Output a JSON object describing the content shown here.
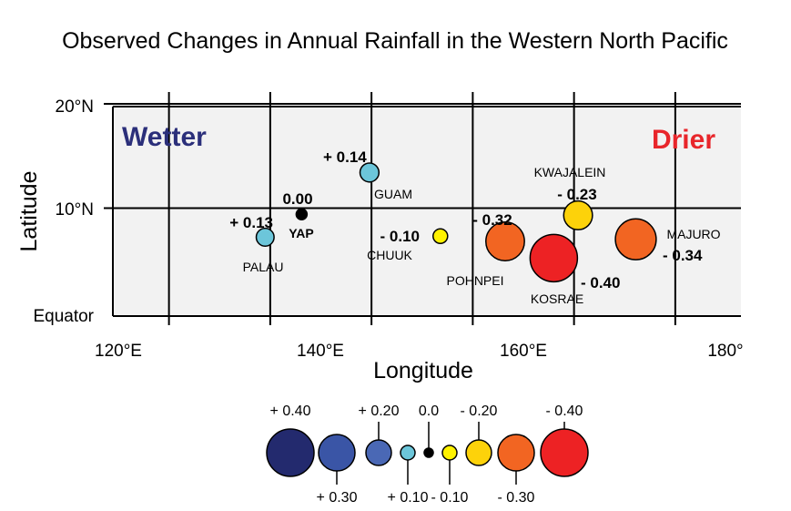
{
  "title": "Observed Changes in Annual Rainfall in the Western North Pacific",
  "xlabel": "Longitude",
  "ylabel": "Latitude",
  "x_ticks": [
    {
      "lon": 120,
      "label": "120°E"
    },
    {
      "lon": 140,
      "label": "140°E"
    },
    {
      "lon": 160,
      "label": "160°E"
    },
    {
      "lon": 180,
      "label": "180°"
    }
  ],
  "y_ticks": [
    {
      "lat": 20,
      "label": "20°N"
    },
    {
      "lat": 10,
      "label": "10°N"
    },
    {
      "lat": 0,
      "label": "Equator"
    }
  ],
  "region_labels": {
    "wetter": "Wetter",
    "drier": "Drier"
  },
  "colors": {
    "wetter": "#2b2f7a",
    "drier": "#e8262b",
    "panel_bg": "#f2f2f2",
    "pos_0.40": "#232a6e",
    "pos_0.30": "#3a55a6",
    "pos_0.20": "#4a68b5",
    "pos_0.10": "#6cc6da",
    "zero": "#000000",
    "neg_0.10": "#fff200",
    "neg_0.20": "#fdd20a",
    "neg_0.30": "#f26522",
    "neg_0.40": "#ed2224"
  },
  "stations": [
    {
      "name": "PALAU",
      "lon": 134.5,
      "lat": 7.3,
      "change": 0.13,
      "value_label": "+ 0.13"
    },
    {
      "name": "YAP",
      "lon": 138.1,
      "lat": 9.5,
      "change": 0.0,
      "value_label": "0.00"
    },
    {
      "name": "GUAM",
      "lon": 144.8,
      "lat": 13.5,
      "change": 0.14,
      "value_label": "+ 0.14"
    },
    {
      "name": "CHUUK",
      "lon": 151.8,
      "lat": 7.4,
      "change": -0.1,
      "value_label": "- 0.10"
    },
    {
      "name": "POHNPEI",
      "lon": 158.2,
      "lat": 6.9,
      "change": -0.32,
      "value_label": "- 0.32"
    },
    {
      "name": "KOSRAE",
      "lon": 163.0,
      "lat": 5.3,
      "change": -0.4,
      "value_label": "- 0.40"
    },
    {
      "name": "KWAJALEIN",
      "lon": 165.4,
      "lat": 9.4,
      "change": -0.23,
      "value_label": "- 0.23"
    },
    {
      "name": "MAJURO",
      "lon": 171.1,
      "lat": 7.1,
      "change": -0.34,
      "value_label": "- 0.34"
    }
  ],
  "legend": [
    {
      "value": 0.4,
      "label": "+ 0.40"
    },
    {
      "value": 0.3,
      "label": "+ 0.30"
    },
    {
      "value": 0.2,
      "label": "+ 0.20"
    },
    {
      "value": 0.1,
      "label": "+ 0.10"
    },
    {
      "value": 0.0,
      "label": "0.0"
    },
    {
      "value": -0.1,
      "label": "- 0.10"
    },
    {
      "value": -0.2,
      "label": "- 0.20"
    },
    {
      "value": -0.3,
      "label": "- 0.30"
    },
    {
      "value": -0.4,
      "label": "- 0.40"
    }
  ]
}
